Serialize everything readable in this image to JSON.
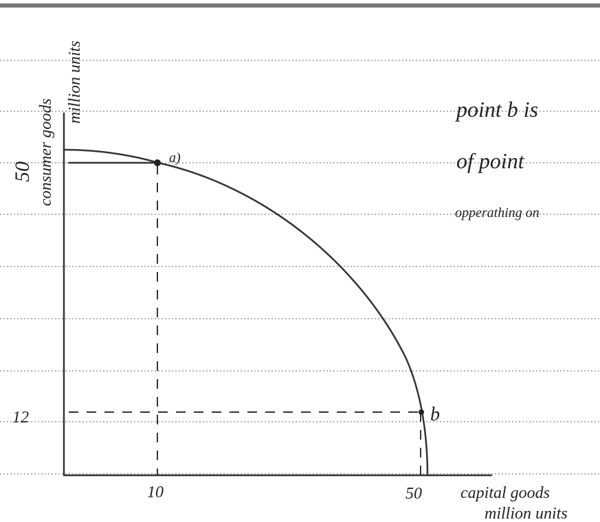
{
  "axes": {
    "y_label_line1": "consumer goods",
    "y_label_line2": "million units",
    "x_label_line1": "capital goods",
    "x_label_line2": "million units",
    "x_ticks": [
      "10",
      "50"
    ],
    "y_ticks": [
      "50",
      "12"
    ]
  },
  "points": [
    {
      "label": "a)"
    },
    {
      "label": "b"
    }
  ],
  "notes": [
    "point b is",
    "of point",
    "opperathing on"
  ]
}
